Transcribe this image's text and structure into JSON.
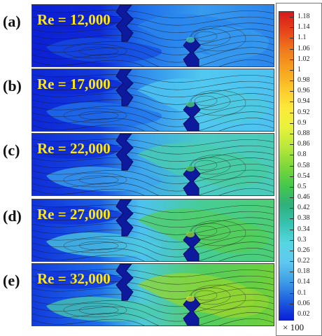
{
  "panels": [
    {
      "letter": "(a)",
      "label": "Re = 12,000",
      "intensity": 0.0
    },
    {
      "letter": "(b)",
      "label": "Re = 17,000",
      "intensity": 0.25
    },
    {
      "letter": "(c)",
      "label": "Re = 22,000",
      "intensity": 0.5
    },
    {
      "letter": "(d)",
      "label": "Re = 27,000",
      "intensity": 0.75
    },
    {
      "letter": "(e)",
      "label": "Re = 32,000",
      "intensity": 1.0
    }
  ],
  "colorbar": {
    "ticks": [
      "1.18",
      "1.14",
      "1.1",
      "1.06",
      "1.02",
      "1",
      "0.98",
      "0.96",
      "0.94",
      "0.92",
      "0.9",
      "0.88",
      "0.86",
      "0.8",
      "0.58",
      "0.54",
      "0.5",
      "0.46",
      "0.42",
      "0.38",
      "0.34",
      "0.3",
      "0.26",
      "0.22",
      "0.18",
      "0.14",
      "0.1",
      "0.06",
      "0.02"
    ],
    "multiplier": "× 100",
    "colors": [
      "#d7191c",
      "#e8451a",
      "#f07a1c",
      "#f7a21e",
      "#fbc82a",
      "#fde93a",
      "#e8f23a",
      "#b8e83a",
      "#7fd83a",
      "#45c94a",
      "#2fb07a",
      "#36c3b0",
      "#55d6e0",
      "#5fc8f0",
      "#3e9ee6",
      "#1e5ee0",
      "#0b1fd8"
    ]
  }
}
